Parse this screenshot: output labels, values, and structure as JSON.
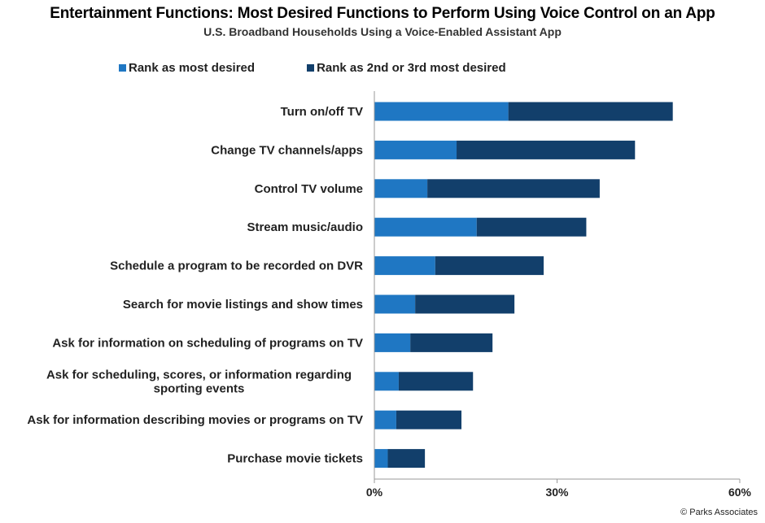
{
  "chart_data": {
    "type": "bar",
    "orientation": "horizontal",
    "stacked": true,
    "title": "Entertainment Functions: Most Desired Functions to Perform Using Voice Control on an App",
    "subtitle": "U.S. Broadband Households Using a Voice-Enabled Assistant App",
    "categories": [
      "Turn on/off TV",
      "Change TV channels/apps",
      "Control TV volume",
      "Stream music/audio",
      "Schedule a program to be recorded on DVR",
      "Search for movie listings and show times",
      "Ask for information on scheduling of programs on TV",
      "Ask for scheduling, scores, or information regarding sporting events",
      "Ask for information describing movies or programs on TV",
      "Purchase movie tickets"
    ],
    "series": [
      {
        "name": "Rank as most desired",
        "color": "#1f77c3",
        "values": [
          22,
          13.5,
          8.7,
          16.8,
          10,
          6.7,
          5.9,
          4,
          3.6,
          2.2
        ]
      },
      {
        "name": "Rank as 2nd or 3rd most desired",
        "color": "#123f6b",
        "values": [
          27,
          29.3,
          28.3,
          18,
          17.8,
          16.3,
          13.5,
          12.2,
          10.7,
          6.1
        ]
      }
    ],
    "xlim": [
      0,
      60
    ],
    "xticks": [
      0,
      30,
      60
    ],
    "xtick_labels": [
      "0%",
      "30%",
      "60%"
    ],
    "xlabel": "",
    "ylabel": "",
    "grid": false,
    "legend_position": "top-left"
  },
  "footer": {
    "source": "© Parks Associates"
  }
}
